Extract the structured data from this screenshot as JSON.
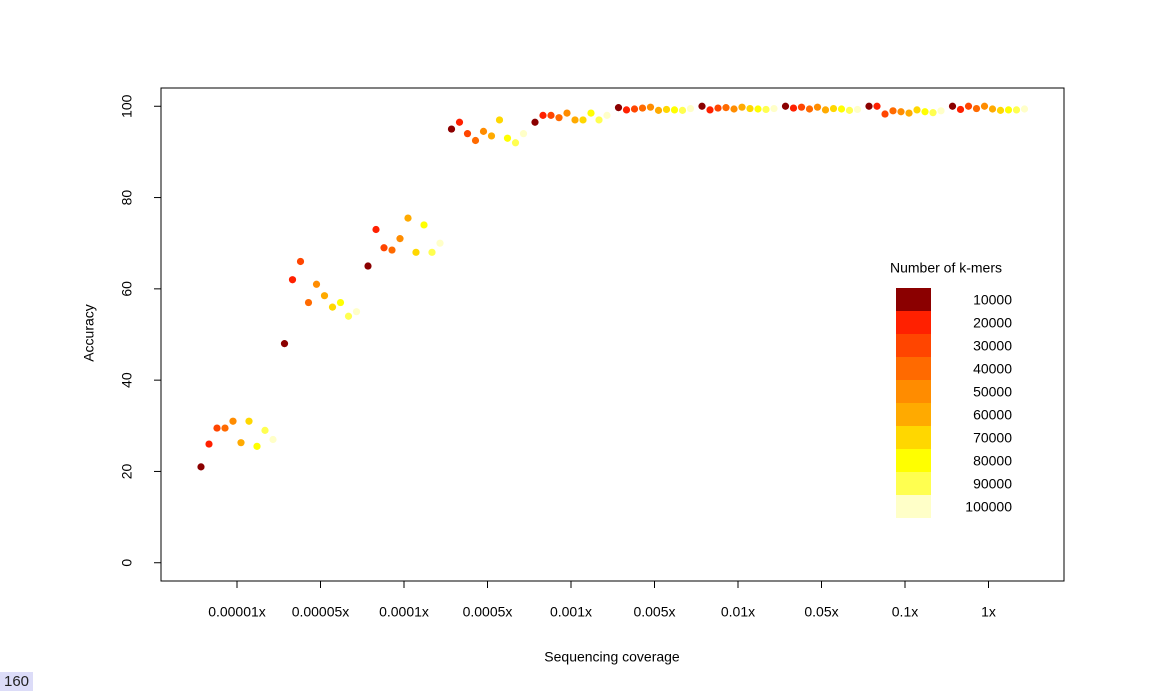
{
  "chart_data": {
    "type": "scatter",
    "x_label": "Sequencing coverage",
    "y_label": "Accuracy",
    "categories": [
      "0.00001x",
      "0.00005x",
      "0.0001x",
      "0.0005x",
      "0.001x",
      "0.005x",
      "0.01x",
      "0.05x",
      "0.1x",
      "1x"
    ],
    "ylim": [
      -4,
      104
    ],
    "yticks": [
      0,
      20,
      40,
      60,
      80,
      100
    ],
    "legend_title": "Number of k-mers",
    "legend_position": "right",
    "series": [
      {
        "name": "10000",
        "color": "#8b0000",
        "values": [
          21,
          48,
          65,
          95,
          96.5,
          99.7,
          100,
          100,
          100,
          100
        ]
      },
      {
        "name": "20000",
        "color": "#ff2000",
        "values": [
          26,
          62,
          73,
          96.5,
          98,
          99.2,
          99.2,
          99.6,
          100,
          99.3
        ]
      },
      {
        "name": "30000",
        "color": "#ff4500",
        "values": [
          29.5,
          66,
          69,
          94,
          98,
          99.4,
          99.6,
          99.8,
          98.3,
          100
        ]
      },
      {
        "name": "40000",
        "color": "#ff6a00",
        "values": [
          29.5,
          57,
          68.5,
          92.5,
          97.5,
          99.6,
          99.7,
          99.4,
          99,
          99.5
        ]
      },
      {
        "name": "50000",
        "color": "#ff8c00",
        "values": [
          31,
          61,
          71,
          94.5,
          98.5,
          99.8,
          99.4,
          99.8,
          98.8,
          100
        ]
      },
      {
        "name": "60000",
        "color": "#ffaa00",
        "values": [
          26.3,
          58.5,
          75.5,
          93.5,
          97,
          99.1,
          99.8,
          99.2,
          98.5,
          99.4
        ]
      },
      {
        "name": "70000",
        "color": "#ffd700",
        "values": [
          31,
          56,
          68,
          97,
          97,
          99.3,
          99.5,
          99.5,
          99.2,
          99.1
        ]
      },
      {
        "name": "80000",
        "color": "#ffff00",
        "values": [
          25.5,
          57,
          74,
          93,
          98.5,
          99.2,
          99.4,
          99.4,
          98.8,
          99.2
        ]
      },
      {
        "name": "90000",
        "color": "#ffff50",
        "values": [
          29,
          54,
          68,
          92,
          97,
          99.1,
          99.3,
          99.1,
          98.6,
          99.2
        ]
      },
      {
        "name": "100000",
        "color": "#ffffc8",
        "values": [
          27,
          55,
          70,
          94,
          98,
          99.5,
          99.5,
          99.3,
          99,
          99.4
        ]
      }
    ],
    "page_number": "160"
  }
}
